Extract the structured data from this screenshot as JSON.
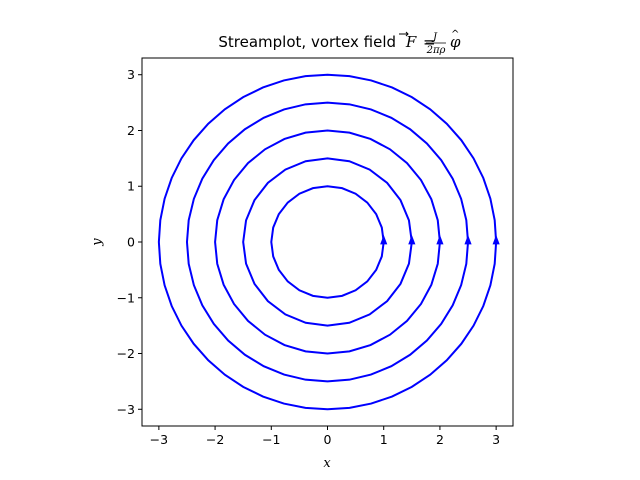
{
  "chart_data": {
    "type": "line",
    "title_prefix": "Streamplot, vortex field",
    "title_formula": {
      "lhs": "F",
      "equals": "=",
      "numerator": "J",
      "denominator": "2πρ",
      "unit_vector": "φ"
    },
    "xlabel": "x",
    "ylabel": "y",
    "xlim": [
      -3.3,
      3.3
    ],
    "ylim": [
      -3.3,
      3.3
    ],
    "xticks": [
      -3,
      -2,
      -1,
      0,
      1,
      2,
      3
    ],
    "yticks": [
      -3,
      -2,
      -1,
      0,
      1,
      2,
      3
    ],
    "xtick_labels": [
      "−3",
      "−2",
      "−1",
      "0",
      "1",
      "2",
      "3"
    ],
    "ytick_labels": [
      "−3",
      "−2",
      "−1",
      "0",
      "1",
      "2",
      "3"
    ],
    "grid": false,
    "line_color": "#0000ff",
    "series": [
      {
        "radius": 1.0
      },
      {
        "radius": 1.5
      },
      {
        "radius": 2.0
      },
      {
        "radius": 2.5
      },
      {
        "radius": 3.0
      }
    ],
    "arrow_direction": "counterclockwise"
  }
}
